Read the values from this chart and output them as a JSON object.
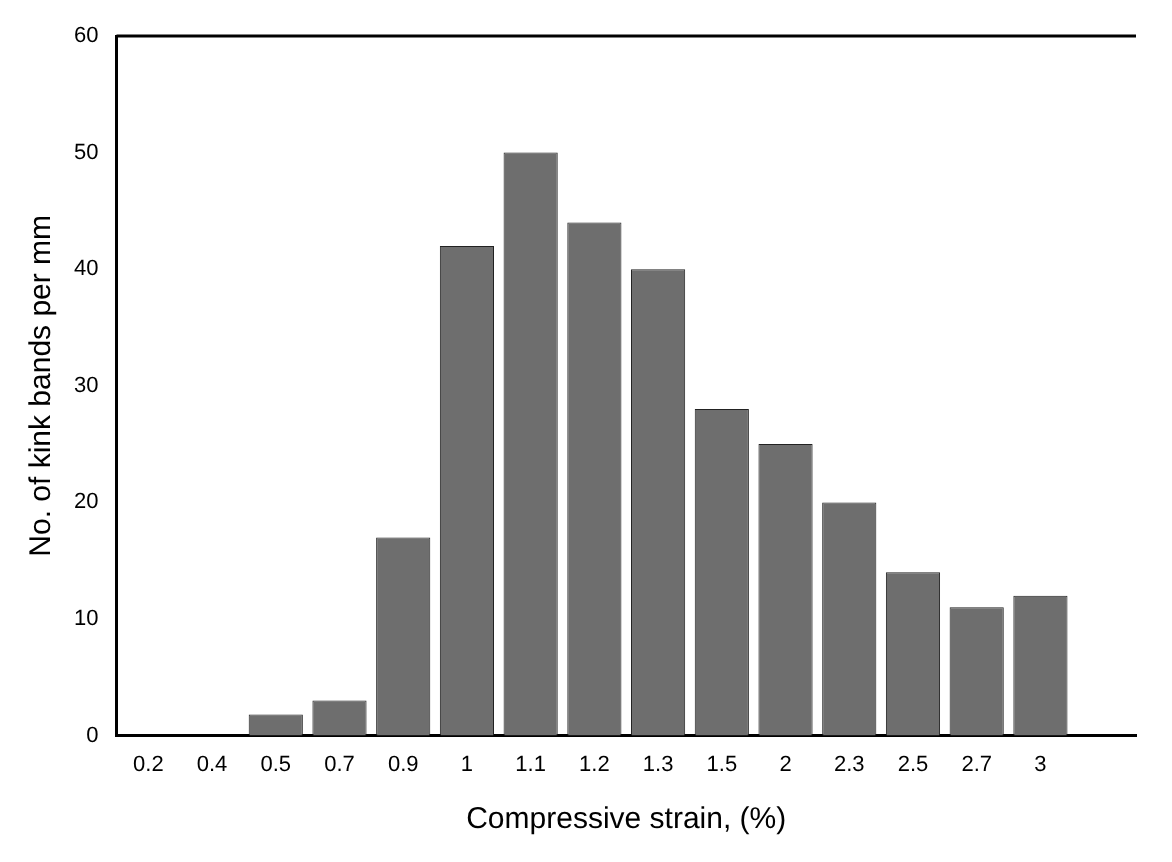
{
  "chart_data": {
    "type": "bar",
    "xlabel": "Compressive strain, (%)",
    "ylabel": "No. of kink bands per mm",
    "categories": [
      "0.2",
      "0.4",
      "0.5",
      "0.7",
      "0.9",
      "1",
      "1.1",
      "1.2",
      "1.3",
      "1.5",
      "2",
      "2.3",
      "2.5",
      "2.7",
      "3",
      null
    ],
    "values": [
      0,
      0,
      1.8,
      3,
      17,
      42,
      50,
      44,
      40,
      28,
      25,
      20,
      14,
      11,
      12,
      null
    ],
    "color": "#6e6e6e",
    "ylim": [
      0,
      60
    ],
    "yticks": [
      0,
      10,
      20,
      30,
      40,
      50,
      60
    ],
    "grid": false,
    "legend": false
  }
}
